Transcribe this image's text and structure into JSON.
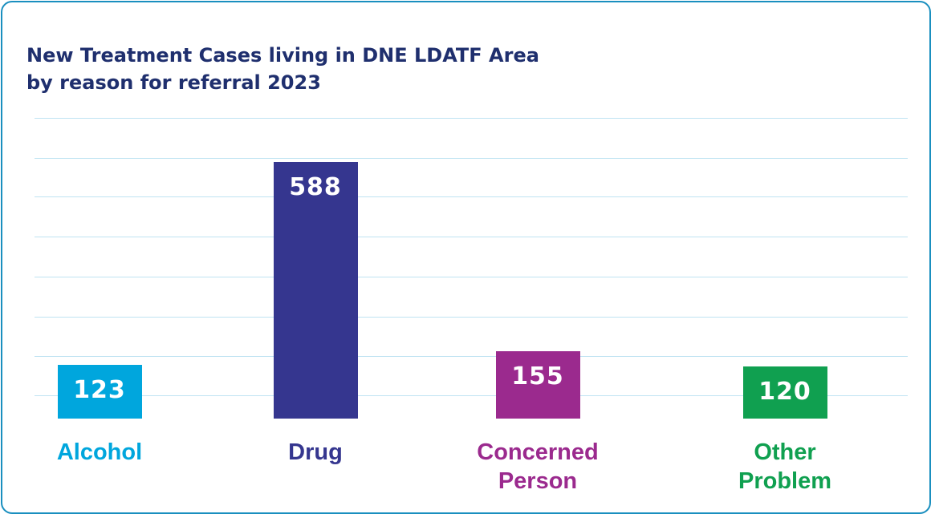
{
  "chart_data": {
    "type": "bar",
    "title": "New Treatment Cases living in DNE LDATF Area\nby reason for referral 2023",
    "categories": [
      "Alcohol",
      "Drug",
      "Concerned Person",
      "Other Problem"
    ],
    "values": [
      123,
      588,
      155,
      120
    ],
    "colors": [
      "#00a6dd",
      "#35368f",
      "#9b2a8e",
      "#10a050"
    ],
    "ylim": [
      0,
      700
    ],
    "grid": true
  }
}
